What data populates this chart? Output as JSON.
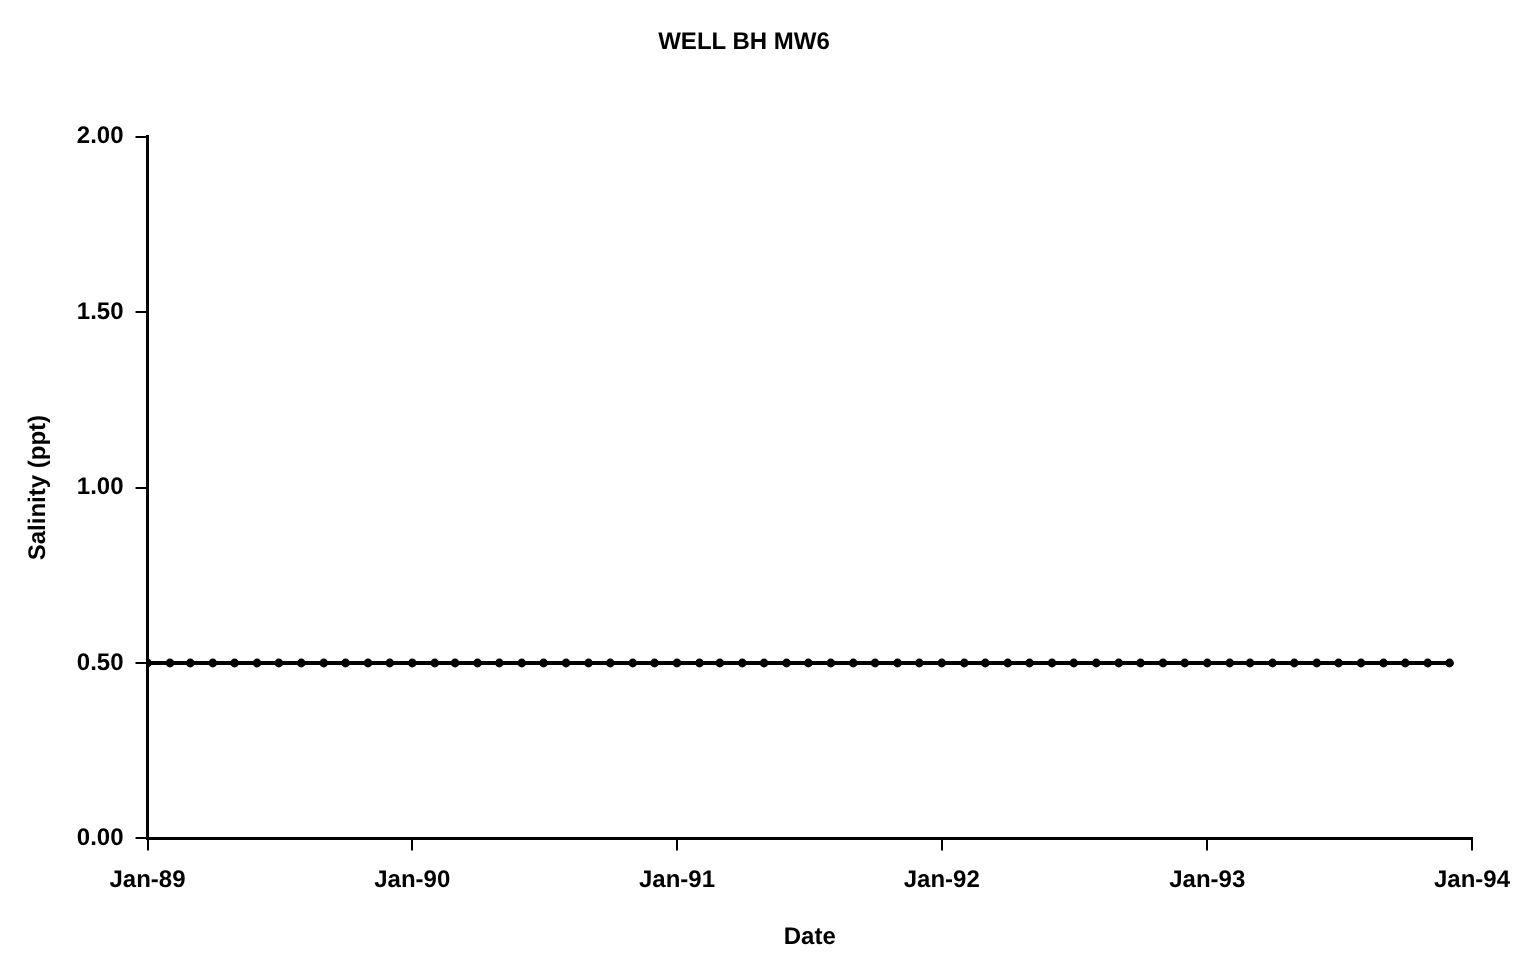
{
  "chart_data": {
    "type": "line",
    "title": "WELL BH MW6",
    "xlabel": "Date",
    "ylabel": "Salinity (ppt)",
    "x": [
      "1989-01",
      "1989-02",
      "1989-03",
      "1989-04",
      "1989-05",
      "1989-06",
      "1989-07",
      "1989-08",
      "1989-09",
      "1989-10",
      "1989-11",
      "1989-12",
      "1990-01",
      "1990-02",
      "1990-03",
      "1990-04",
      "1990-05",
      "1990-06",
      "1990-07",
      "1990-08",
      "1990-09",
      "1990-10",
      "1990-11",
      "1990-12",
      "1991-01",
      "1991-02",
      "1991-03",
      "1991-04",
      "1991-05",
      "1991-06",
      "1991-07",
      "1991-08",
      "1991-09",
      "1991-10",
      "1991-11",
      "1991-12",
      "1992-01",
      "1992-02",
      "1992-03",
      "1992-04",
      "1992-05",
      "1992-06",
      "1992-07",
      "1992-08",
      "1992-09",
      "1992-10",
      "1992-11",
      "1992-12",
      "1993-01",
      "1993-02",
      "1993-03",
      "1993-04",
      "1993-05",
      "1993-06",
      "1993-07",
      "1993-08",
      "1993-09",
      "1993-10",
      "1993-11",
      "1993-12"
    ],
    "series": [
      {
        "color": "#000000",
        "values": [
          0.5,
          0.5,
          0.5,
          0.5,
          0.5,
          0.5,
          0.5,
          0.5,
          0.5,
          0.5,
          0.5,
          0.5,
          0.5,
          0.5,
          0.5,
          0.5,
          0.5,
          0.5,
          0.5,
          0.5,
          0.5,
          0.5,
          0.5,
          0.5,
          0.5,
          0.5,
          0.5,
          0.5,
          0.5,
          0.5,
          0.5,
          0.5,
          0.5,
          0.5,
          0.5,
          0.5,
          0.5,
          0.5,
          0.5,
          0.5,
          0.5,
          0.5,
          0.5,
          0.5,
          0.5,
          0.5,
          0.5,
          0.5,
          0.5,
          0.5,
          0.5,
          0.5,
          0.5,
          0.5,
          0.5,
          0.5,
          0.5,
          0.5,
          0.5,
          0.5
        ]
      }
    ],
    "xlim": [
      "1989-01",
      "1994-01"
    ],
    "xticks": [
      {
        "value": "1989-01",
        "label": "Jan-89"
      },
      {
        "value": "1990-01",
        "label": "Jan-90"
      },
      {
        "value": "1991-01",
        "label": "Jan-91"
      },
      {
        "value": "1992-01",
        "label": "Jan-92"
      },
      {
        "value": "1993-01",
        "label": "Jan-93"
      },
      {
        "value": "1994-01",
        "label": "Jan-94"
      }
    ],
    "ylim": [
      0,
      2
    ],
    "yticks": [
      {
        "value": 0,
        "label": "0.00"
      },
      {
        "value": 0.5,
        "label": "0.50"
      },
      {
        "value": 1,
        "label": "1.00"
      },
      {
        "value": 1.5,
        "label": "1.50"
      },
      {
        "value": 2,
        "label": "2.00"
      }
    ],
    "grid": false,
    "legend": false,
    "marker": "circle",
    "line_style": "solid"
  }
}
